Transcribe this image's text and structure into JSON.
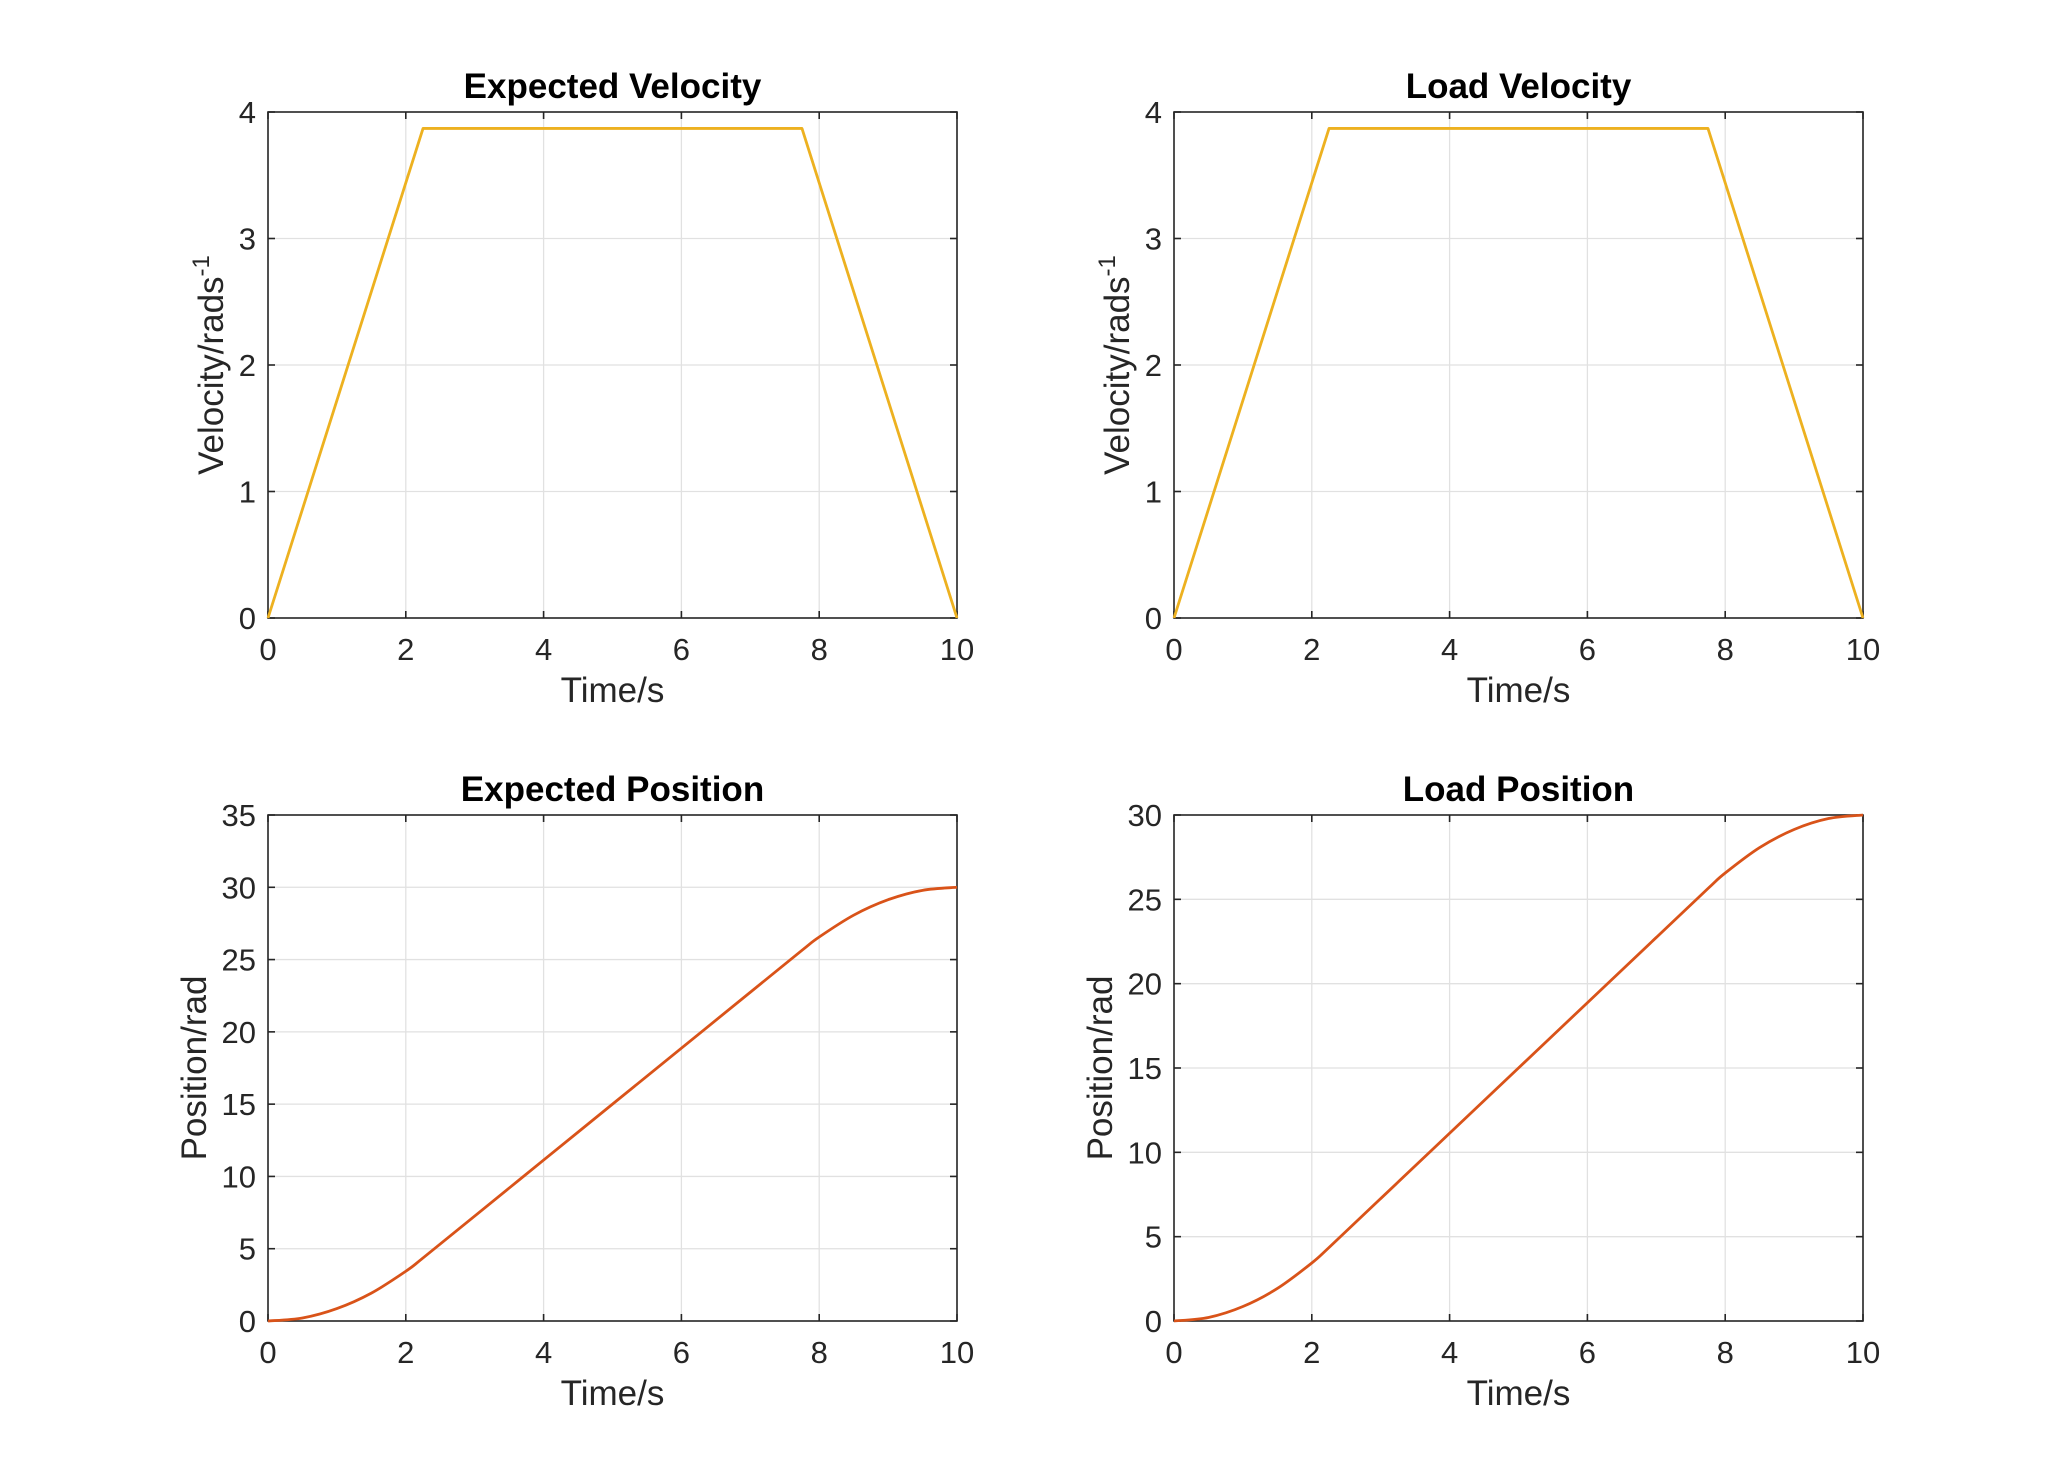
{
  "chart_data": [
    {
      "type": "line",
      "title": "Expected Velocity",
      "xlabel": "Time/s",
      "ylabel": "Velocity/rads",
      "ylabel_sup": "-1",
      "xlim": [
        0,
        10
      ],
      "ylim": [
        0,
        4
      ],
      "xticks": [
        0,
        2,
        4,
        6,
        8,
        10
      ],
      "yticks": [
        0,
        1,
        2,
        3,
        4
      ],
      "grid": true,
      "series": [
        {
          "color": "#EDB120",
          "x": [
            0,
            2.25,
            7.75,
            10
          ],
          "y": [
            0,
            3.87,
            3.87,
            0
          ]
        }
      ]
    },
    {
      "type": "line",
      "title": "Load Velocity",
      "xlabel": "Time/s",
      "ylabel": "Velocity/rads",
      "ylabel_sup": "-1",
      "xlim": [
        0,
        10
      ],
      "ylim": [
        0,
        4
      ],
      "xticks": [
        0,
        2,
        4,
        6,
        8,
        10
      ],
      "yticks": [
        0,
        1,
        2,
        3,
        4
      ],
      "grid": true,
      "series": [
        {
          "color": "#EDB120",
          "x": [
            0,
            2.25,
            7.75,
            10
          ],
          "y": [
            0,
            3.87,
            3.87,
            0
          ]
        }
      ]
    },
    {
      "type": "line",
      "title": "Expected Position",
      "xlabel": "Time/s",
      "ylabel": "Position/rad",
      "xlim": [
        0,
        10
      ],
      "ylim": [
        0,
        35
      ],
      "xticks": [
        0,
        2,
        4,
        6,
        8,
        10
      ],
      "yticks": [
        0,
        5,
        10,
        15,
        20,
        25,
        30,
        35
      ],
      "grid": true,
      "series": [
        {
          "color": "#D95319",
          "x": [
            0,
            0.5,
            1,
            1.5,
            2,
            2.25,
            3,
            4,
            5,
            6,
            7,
            7.75,
            8,
            8.5,
            9,
            9.5,
            10
          ],
          "y": [
            0,
            0.21,
            0.86,
            1.93,
            3.44,
            4.36,
            7.26,
            11.13,
            15.0,
            18.87,
            22.74,
            25.64,
            26.56,
            28.07,
            29.14,
            29.79,
            30.0
          ]
        }
      ]
    },
    {
      "type": "line",
      "title": "Load Position",
      "xlabel": "Time/s",
      "ylabel": "Position/rad",
      "xlim": [
        0,
        10
      ],
      "ylim": [
        0,
        30
      ],
      "xticks": [
        0,
        2,
        4,
        6,
        8,
        10
      ],
      "yticks": [
        0,
        5,
        10,
        15,
        20,
        25,
        30
      ],
      "grid": true,
      "series": [
        {
          "color": "#D95319",
          "x": [
            0,
            0.5,
            1,
            1.5,
            2,
            2.25,
            3,
            4,
            5,
            6,
            7,
            7.75,
            8,
            8.5,
            9,
            9.5,
            10
          ],
          "y": [
            0,
            0.21,
            0.86,
            1.93,
            3.44,
            4.36,
            7.26,
            11.13,
            15.0,
            18.87,
            22.74,
            25.64,
            26.56,
            28.07,
            29.14,
            29.79,
            30.0
          ]
        }
      ]
    }
  ]
}
